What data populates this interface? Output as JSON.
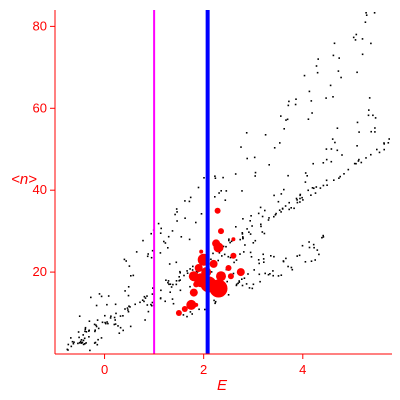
{
  "chart_data": {
    "type": "scatter",
    "title": "",
    "xlabel": "E",
    "ylabel": "<n>",
    "xlim": [
      -1.0,
      5.8
    ],
    "ylim": [
      0,
      84
    ],
    "xticks": [
      0,
      2,
      4
    ],
    "xtick_labels": [
      "0",
      "2",
      "4"
    ],
    "yticks": [
      20,
      40,
      60,
      80
    ],
    "ytick_labels": [
      "20",
      "40",
      "60",
      "80"
    ],
    "grid": false,
    "legend": "none",
    "colors": {
      "axes": "#ff0000",
      "small_points": "#000000",
      "large_points": "#ff0000",
      "magenta_line": "#ff00ff",
      "blue_line": "#0000ff"
    },
    "vertical_lines": [
      {
        "x": 1.0,
        "color": "#ff00ff"
      },
      {
        "x": 2.08,
        "color": "#0000ff"
      }
    ],
    "bands": [
      {
        "x0": -0.9,
        "x1": 5.75,
        "y0": 1,
        "y1": 52,
        "n": 120,
        "jitter": 1.0,
        "seed": 11
      },
      {
        "x0": -0.7,
        "x1": 3.2,
        "y0": 2,
        "y1": 26,
        "n": 70,
        "jitter": 3.0,
        "seed": 23
      },
      {
        "x0": -0.6,
        "x1": 5.6,
        "y0": 4,
        "y1": 82,
        "n": 120,
        "jitter": 7.0,
        "seed": 37
      },
      {
        "x0": 1.3,
        "x1": 4.4,
        "y0": 10,
        "y1": 27,
        "n": 70,
        "jitter": 3.0,
        "seed": 51
      },
      {
        "x0": 2.0,
        "x1": 5.5,
        "y0": 20,
        "y1": 60,
        "n": 60,
        "jitter": 5.0,
        "seed": 71
      }
    ],
    "large_points": [
      {
        "x": 1.5,
        "y": 10,
        "size": 3
      },
      {
        "x": 1.62,
        "y": 11,
        "size": 3
      },
      {
        "x": 1.75,
        "y": 12,
        "size": 5
      },
      {
        "x": 1.8,
        "y": 15,
        "size": 4
      },
      {
        "x": 1.8,
        "y": 19,
        "size": 5
      },
      {
        "x": 1.85,
        "y": 17,
        "size": 3
      },
      {
        "x": 1.9,
        "y": 21,
        "size": 4
      },
      {
        "x": 1.95,
        "y": 18,
        "size": 7
      },
      {
        "x": 2.0,
        "y": 23,
        "size": 6
      },
      {
        "x": 2.05,
        "y": 20,
        "size": 5
      },
      {
        "x": 2.1,
        "y": 17,
        "size": 8
      },
      {
        "x": 2.2,
        "y": 22,
        "size": 4
      },
      {
        "x": 2.25,
        "y": 27,
        "size": 4
      },
      {
        "x": 2.3,
        "y": 16,
        "size": 9
      },
      {
        "x": 2.35,
        "y": 19,
        "size": 5
      },
      {
        "x": 2.3,
        "y": 26,
        "size": 5
      },
      {
        "x": 2.28,
        "y": 35,
        "size": 3
      },
      {
        "x": 2.35,
        "y": 30,
        "size": 3
      },
      {
        "x": 2.5,
        "y": 21,
        "size": 3
      },
      {
        "x": 2.55,
        "y": 19,
        "size": 3
      },
      {
        "x": 2.6,
        "y": 24,
        "size": 3
      },
      {
        "x": 2.75,
        "y": 20,
        "size": 4
      },
      {
        "x": 2.6,
        "y": 28,
        "size": 2
      },
      {
        "x": 1.85,
        "y": 12,
        "size": 2
      },
      {
        "x": 1.95,
        "y": 25,
        "size": 2
      }
    ]
  }
}
